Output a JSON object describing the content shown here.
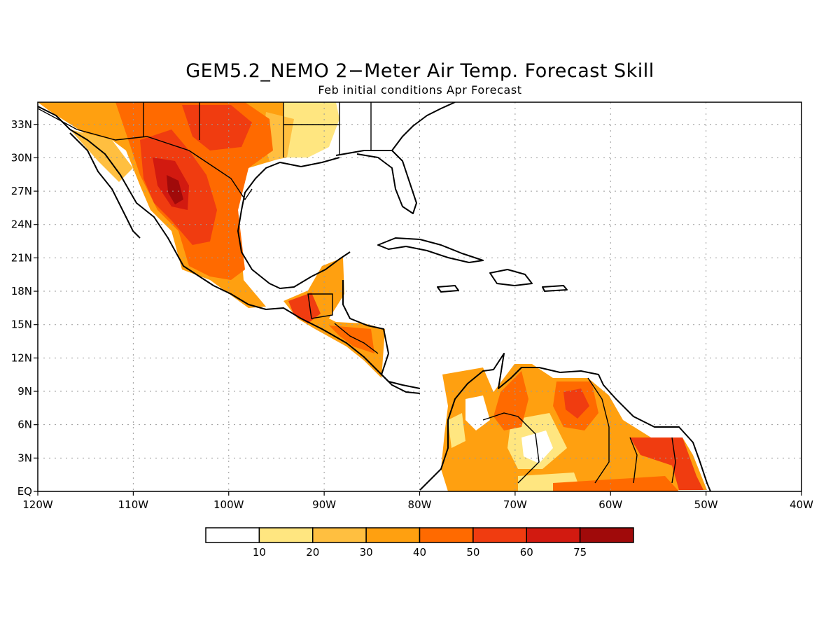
{
  "title": "GEM5.2_NEMO 2−Meter Air Temp. Forecast Skill",
  "subtitle": "Feb initial conditions  Apr Forecast",
  "map": {
    "lon_range": [
      -120,
      -40
    ],
    "lat_range": [
      0,
      35
    ],
    "lat_ticks": [
      {
        "v": 33,
        "label": "33N"
      },
      {
        "v": 30,
        "label": "30N"
      },
      {
        "v": 27,
        "label": "27N"
      },
      {
        "v": 24,
        "label": "24N"
      },
      {
        "v": 21,
        "label": "21N"
      },
      {
        "v": 18,
        "label": "18N"
      },
      {
        "v": 15,
        "label": "15N"
      },
      {
        "v": 12,
        "label": "12N"
      },
      {
        "v": 9,
        "label": "9N"
      },
      {
        "v": 6,
        "label": "6N"
      },
      {
        "v": 3,
        "label": "3N"
      },
      {
        "v": 0,
        "label": "EQ"
      }
    ],
    "lon_ticks": [
      {
        "v": -120,
        "label": "120W"
      },
      {
        "v": -110,
        "label": "110W"
      },
      {
        "v": -100,
        "label": "100W"
      },
      {
        "v": -90,
        "label": "90W"
      },
      {
        "v": -80,
        "label": "80W"
      },
      {
        "v": -70,
        "label": "70W"
      },
      {
        "v": -60,
        "label": "60W"
      },
      {
        "v": -50,
        "label": "50W"
      },
      {
        "v": -40,
        "label": "40W"
      }
    ],
    "grid": true
  },
  "colorbar": {
    "labels": [
      "10",
      "20",
      "30",
      "40",
      "50",
      "60",
      "75"
    ],
    "colors": [
      "#ffffff",
      "#ffe680",
      "#ffbf40",
      "#ffa010",
      "#ff6a00",
      "#f03c10",
      "#d21a10",
      "#a00a0a"
    ]
  }
}
